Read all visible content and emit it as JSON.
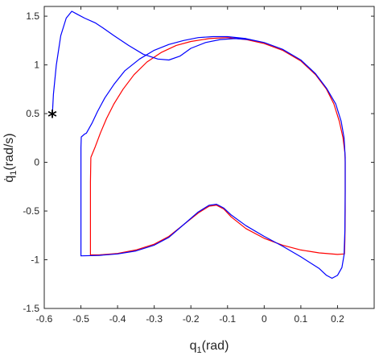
{
  "chart_data": {
    "type": "line",
    "title": "",
    "xlabel": "q",
    "xlabel_sub": "1",
    "xlabel_unit": "(rad)",
    "ylabel": "q̇",
    "ylabel_sub": "1",
    "ylabel_unit": "(rad/s)",
    "xlim": [
      -0.6,
      0.3
    ],
    "ylim": [
      -1.5,
      1.6
    ],
    "xticks": [
      -0.6,
      -0.5,
      -0.4,
      -0.3,
      -0.2,
      -0.1,
      0,
      0.1,
      0.2
    ],
    "xtick_labels": [
      "-0.6",
      "-0.5",
      "-0.4",
      "-0.3",
      "-0.2",
      "-0.1",
      "0",
      "0.1",
      "0.2"
    ],
    "yticks": [
      -1.5,
      -1,
      -0.5,
      0,
      0.5,
      1,
      1.5
    ],
    "ytick_labels": [
      "-1.5",
      "-1",
      "-0.5",
      "0",
      "0.5",
      "1",
      "1.5"
    ],
    "grid": false,
    "box": true,
    "series": [
      {
        "color": "#ff0000",
        "points": [
          [
            -0.473,
            0.05
          ],
          [
            -0.462,
            0.15
          ],
          [
            -0.447,
            0.3
          ],
          [
            -0.43,
            0.45
          ],
          [
            -0.41,
            0.6
          ],
          [
            -0.385,
            0.75
          ],
          [
            -0.355,
            0.9
          ],
          [
            -0.32,
            1.03
          ],
          [
            -0.28,
            1.13
          ],
          [
            -0.24,
            1.2
          ],
          [
            -0.2,
            1.24
          ],
          [
            -0.15,
            1.27
          ],
          [
            -0.1,
            1.28
          ],
          [
            -0.05,
            1.26
          ],
          [
            0,
            1.22
          ],
          [
            0.05,
            1.15
          ],
          [
            0.1,
            1.04
          ],
          [
            0.14,
            0.9
          ],
          [
            0.17,
            0.75
          ],
          [
            0.19,
            0.6
          ],
          [
            0.205,
            0.42
          ],
          [
            0.215,
            0.25
          ],
          [
            0.22,
            0.1
          ],
          [
            0.221,
            0.0
          ],
          [
            0.221,
            -0.2
          ],
          [
            0.221,
            -0.5
          ],
          [
            0.22,
            -0.8
          ],
          [
            0.219,
            -0.94
          ],
          [
            0.2,
            -0.945
          ],
          [
            0.15,
            -0.93
          ],
          [
            0.1,
            -0.9
          ],
          [
            0.05,
            -0.85
          ],
          [
            0.0,
            -0.78
          ],
          [
            -0.05,
            -0.68
          ],
          [
            -0.09,
            -0.56
          ],
          [
            -0.11,
            -0.48
          ],
          [
            -0.13,
            -0.44
          ],
          [
            -0.15,
            -0.45
          ],
          [
            -0.18,
            -0.52
          ],
          [
            -0.22,
            -0.64
          ],
          [
            -0.26,
            -0.76
          ],
          [
            -0.3,
            -0.84
          ],
          [
            -0.35,
            -0.9
          ],
          [
            -0.4,
            -0.935
          ],
          [
            -0.45,
            -0.95
          ],
          [
            -0.474,
            -0.95
          ],
          [
            -0.474,
            -0.8
          ],
          [
            -0.474,
            -0.5
          ],
          [
            -0.474,
            -0.2
          ],
          [
            -0.473,
            0.05
          ]
        ]
      },
      {
        "color": "#0000ff",
        "points": [
          [
            -0.578,
            0.48
          ],
          [
            -0.575,
            0.7
          ],
          [
            -0.567,
            1.0
          ],
          [
            -0.555,
            1.3
          ],
          [
            -0.54,
            1.48
          ],
          [
            -0.525,
            1.55
          ],
          [
            -0.51,
            1.52
          ],
          [
            -0.49,
            1.48
          ],
          [
            -0.46,
            1.43
          ],
          [
            -0.44,
            1.38
          ],
          [
            -0.41,
            1.3
          ],
          [
            -0.37,
            1.2
          ],
          [
            -0.33,
            1.11
          ],
          [
            -0.29,
            1.06
          ],
          [
            -0.26,
            1.05
          ],
          [
            -0.23,
            1.09
          ],
          [
            -0.2,
            1.17
          ],
          [
            -0.16,
            1.23
          ],
          [
            -0.12,
            1.26
          ],
          [
            -0.08,
            1.27
          ],
          [
            -0.04,
            1.26
          ],
          [
            0.0,
            1.23
          ],
          [
            0.05,
            1.16
          ],
          [
            0.1,
            1.05
          ],
          [
            0.14,
            0.91
          ],
          [
            0.17,
            0.76
          ],
          [
            0.195,
            0.6
          ],
          [
            0.21,
            0.42
          ],
          [
            0.218,
            0.25
          ],
          [
            0.221,
            0.05
          ],
          [
            0.221,
            -0.3
          ],
          [
            0.22,
            -0.7
          ],
          [
            0.218,
            -0.95
          ],
          [
            0.212,
            -1.08
          ],
          [
            0.2,
            -1.16
          ],
          [
            0.185,
            -1.19
          ],
          [
            0.17,
            -1.16
          ],
          [
            0.15,
            -1.09
          ],
          [
            0.1,
            -0.97
          ],
          [
            0.05,
            -0.86
          ],
          [
            0.0,
            -0.76
          ],
          [
            -0.05,
            -0.65
          ],
          [
            -0.09,
            -0.54
          ],
          [
            -0.11,
            -0.47
          ],
          [
            -0.13,
            -0.43
          ],
          [
            -0.15,
            -0.44
          ],
          [
            -0.18,
            -0.51
          ],
          [
            -0.22,
            -0.64
          ],
          [
            -0.26,
            -0.77
          ],
          [
            -0.3,
            -0.85
          ],
          [
            -0.35,
            -0.91
          ],
          [
            -0.4,
            -0.94
          ],
          [
            -0.45,
            -0.955
          ],
          [
            -0.5,
            -0.96
          ],
          [
            -0.5,
            -0.6
          ],
          [
            -0.5,
            -0.2
          ],
          [
            -0.5,
            0.15
          ],
          [
            -0.499,
            0.26
          ],
          [
            -0.49,
            0.29
          ],
          [
            -0.485,
            0.3
          ],
          [
            -0.47,
            0.4
          ],
          [
            -0.455,
            0.52
          ],
          [
            -0.435,
            0.66
          ],
          [
            -0.41,
            0.8
          ],
          [
            -0.38,
            0.94
          ],
          [
            -0.34,
            1.06
          ],
          [
            -0.3,
            1.15
          ],
          [
            -0.26,
            1.21
          ],
          [
            -0.22,
            1.25
          ],
          [
            -0.18,
            1.28
          ],
          [
            -0.14,
            1.29
          ],
          [
            -0.1,
            1.29
          ],
          [
            -0.05,
            1.27
          ],
          [
            0.0,
            1.23
          ]
        ]
      }
    ],
    "markers": [
      {
        "symbol": "*",
        "x": -0.578,
        "y": 0.48,
        "color": "#000000"
      }
    ]
  }
}
